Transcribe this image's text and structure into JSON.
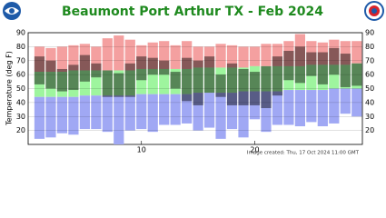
{
  "chart_data": {
    "type": "range-bar",
    "title": "Beaumont Port Arthur TX - Feb 2024",
    "y_label": "Temperature (deg F)",
    "footer": "Image created: Thu, 17 Oct 2024 11:00 GMT",
    "x": [
      1,
      2,
      3,
      4,
      5,
      6,
      7,
      8,
      9,
      10,
      11,
      12,
      13,
      14,
      15,
      16,
      17,
      18,
      19,
      20,
      21,
      22,
      23,
      24,
      25,
      26,
      27,
      28,
      29
    ],
    "xlim": [
      0,
      29.5
    ],
    "xticks": [
      10,
      20
    ],
    "ylim": [
      10,
      90
    ],
    "yticks": [
      20,
      30,
      40,
      50,
      60,
      70,
      80,
      90
    ],
    "record_high": [
      80,
      79,
      80,
      81,
      82,
      80,
      86,
      88,
      85,
      81,
      83,
      84,
      81,
      84,
      80,
      80,
      82,
      81,
      80,
      80,
      82,
      82,
      84,
      89,
      84,
      83,
      85,
      84,
      84
    ],
    "normal_high": [
      62,
      62,
      62,
      63,
      63,
      63,
      63,
      63,
      63,
      64,
      64,
      64,
      64,
      64,
      65,
      65,
      65,
      65,
      65,
      66,
      66,
      66,
      66,
      66,
      67,
      67,
      67,
      67,
      68
    ],
    "normal_low": [
      44,
      44,
      44,
      44,
      45,
      45,
      45,
      45,
      45,
      46,
      46,
      46,
      46,
      46,
      47,
      47,
      47,
      47,
      48,
      48,
      48,
      48,
      49,
      49,
      49,
      49,
      50,
      50,
      50
    ],
    "record_low": [
      14,
      15,
      18,
      17,
      21,
      21,
      19,
      10,
      20,
      21,
      19,
      24,
      24,
      25,
      20,
      22,
      14,
      21,
      15,
      28,
      19,
      24,
      24,
      23,
      26,
      23,
      25,
      32,
      30
    ],
    "actual_high": [
      73,
      70,
      64,
      67,
      74,
      68,
      63,
      61,
      68,
      73,
      72,
      70,
      62,
      72,
      70,
      73,
      60,
      68,
      64,
      62,
      66,
      73,
      77,
      80,
      76,
      76,
      79,
      75,
      68
    ],
    "actual_low": [
      53,
      50,
      48,
      49,
      55,
      58,
      44,
      44,
      44,
      56,
      60,
      60,
      50,
      41,
      38,
      47,
      44,
      38,
      38,
      38,
      36,
      45,
      56,
      54,
      59,
      53,
      60,
      51,
      52
    ],
    "colors": {
      "record_high": "#f4a0a0",
      "normal": "#9ef59e",
      "record_low": "#a0a8f4",
      "actual": "#000000"
    },
    "grid": true
  }
}
